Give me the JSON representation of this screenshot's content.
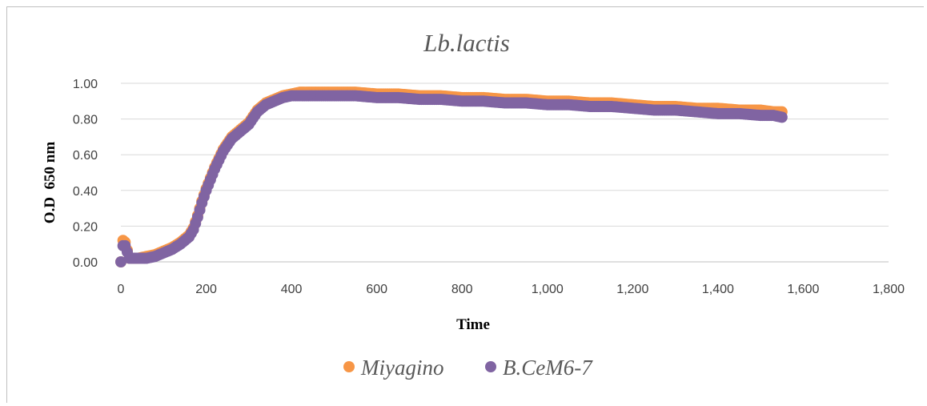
{
  "chart_data": {
    "type": "scatter",
    "title": "Lb.lactis",
    "xlabel": "Time",
    "ylabel": "O.D  650 nm",
    "xlim": [
      0,
      1800
    ],
    "ylim": [
      0,
      1.0
    ],
    "x_ticks": [
      0,
      200,
      400,
      600,
      800,
      1000,
      1200,
      1400,
      1600,
      1800
    ],
    "x_tick_labels": [
      "0",
      "200",
      "400",
      "600",
      "800",
      "1,000",
      "1,200",
      "1,400",
      "1,600",
      "1,800"
    ],
    "y_ticks": [
      0,
      0.2,
      0.4,
      0.6,
      0.8,
      1.0
    ],
    "y_tick_labels": [
      "0.00",
      "0.20",
      "0.40",
      "0.60",
      "0.80",
      "1.00"
    ],
    "grid": "horizontal",
    "legend": "bottom",
    "series": [
      {
        "name": "Miyagino",
        "color": "#f79646",
        "x": [
          0,
          5,
          10,
          20,
          40,
          60,
          80,
          100,
          120,
          140,
          160,
          170,
          180,
          190,
          200,
          210,
          220,
          240,
          260,
          280,
          300,
          320,
          340,
          360,
          380,
          400,
          420,
          440,
          460,
          480,
          500,
          550,
          600,
          650,
          700,
          750,
          800,
          850,
          900,
          950,
          1000,
          1050,
          1100,
          1150,
          1200,
          1250,
          1300,
          1350,
          1400,
          1450,
          1500,
          1530,
          1550
        ],
        "y": [
          0.0,
          0.12,
          0.11,
          0.02,
          0.02,
          0.03,
          0.04,
          0.06,
          0.08,
          0.11,
          0.15,
          0.19,
          0.26,
          0.34,
          0.41,
          0.47,
          0.53,
          0.63,
          0.7,
          0.74,
          0.78,
          0.85,
          0.89,
          0.91,
          0.93,
          0.94,
          0.95,
          0.95,
          0.95,
          0.95,
          0.95,
          0.95,
          0.94,
          0.94,
          0.93,
          0.93,
          0.92,
          0.92,
          0.91,
          0.91,
          0.9,
          0.9,
          0.89,
          0.89,
          0.88,
          0.87,
          0.87,
          0.86,
          0.86,
          0.85,
          0.85,
          0.84,
          0.84
        ]
      },
      {
        "name": "B.CeM6-7",
        "color": "#8064a2",
        "x": [
          0,
          5,
          10,
          20,
          40,
          60,
          80,
          100,
          120,
          140,
          160,
          170,
          180,
          190,
          200,
          210,
          220,
          240,
          260,
          280,
          300,
          320,
          340,
          360,
          380,
          400,
          420,
          440,
          460,
          480,
          500,
          550,
          600,
          650,
          700,
          750,
          800,
          850,
          900,
          950,
          1000,
          1050,
          1100,
          1150,
          1200,
          1250,
          1300,
          1350,
          1400,
          1450,
          1500,
          1530,
          1550
        ],
        "y": [
          0.0,
          0.09,
          0.09,
          0.02,
          0.02,
          0.02,
          0.03,
          0.05,
          0.07,
          0.1,
          0.14,
          0.18,
          0.25,
          0.33,
          0.4,
          0.46,
          0.52,
          0.62,
          0.69,
          0.73,
          0.77,
          0.84,
          0.88,
          0.9,
          0.92,
          0.93,
          0.93,
          0.93,
          0.93,
          0.93,
          0.93,
          0.93,
          0.92,
          0.92,
          0.91,
          0.91,
          0.9,
          0.9,
          0.89,
          0.89,
          0.88,
          0.88,
          0.87,
          0.87,
          0.86,
          0.85,
          0.85,
          0.84,
          0.83,
          0.83,
          0.82,
          0.82,
          0.81
        ]
      }
    ]
  }
}
